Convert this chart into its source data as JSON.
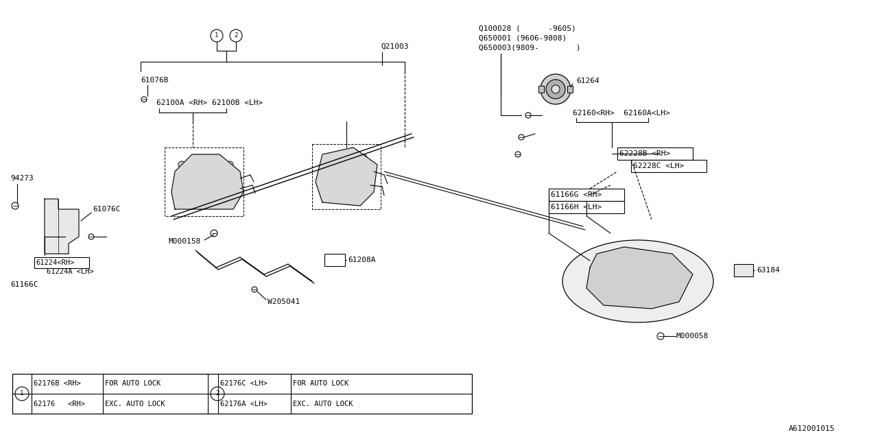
{
  "bg_color": "#ffffff",
  "lc": "#000000",
  "ff": "monospace",
  "diagram_id": "A612001015",
  "parts": {
    "Q100028": "Q100028 (      -9605)",
    "Q650001": "Q650001 (9606-9808)",
    "Q650003": "Q650003(9809-        )",
    "Q21003": "Q21003",
    "61076B": "61076B",
    "62100A_B": "62100A <RH> 62100B <LH>",
    "61076C": "61076C",
    "94273": "94273",
    "61224_RH": "61224<RH>",
    "61224A_LH": "61224A <LH>",
    "61166C": "61166C",
    "M000158": "M000158",
    "61208A": "61208A",
    "W205041": "W205041",
    "61264": "61264",
    "62160": "62160<RH>  62160A<LH>",
    "62228B": "62228B <RH>",
    "62228C": "62228C <LH>",
    "61166G": "61166G <RH>",
    "61166H": "61166H <LH>",
    "63184": "63184",
    "M000058": "M000058",
    "leg1r1": "62176   <RH>",
    "leg1d1": "EXC. AUTO LOCK",
    "leg1r2": "62176B <RH>",
    "leg1d2": "FOR AUTO LOCK",
    "leg2r1": "62176A <LH>",
    "leg2d1": "EXC. AUTO LOCK",
    "leg2r2": "62176C <LH>",
    "leg2d2": "FOR AUTO LOCK"
  }
}
